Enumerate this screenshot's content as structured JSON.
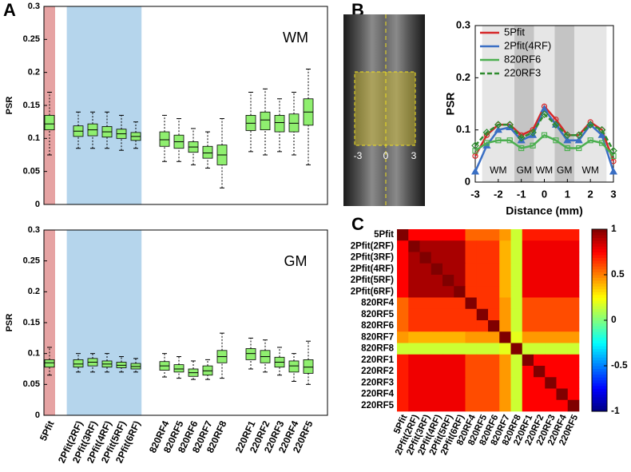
{
  "panel_labels": [
    "A",
    "B",
    "C"
  ],
  "image": {
    "tick_labels": [
      "-3",
      "0",
      "3"
    ]
  },
  "chart_data": [
    {
      "type": "box",
      "ylabel": "PSR",
      "annotation": "WM",
      "ylim": [
        0,
        0.3
      ],
      "yticks": [
        0,
        0.05,
        0.1,
        0.15,
        0.2,
        0.25,
        0.3
      ],
      "boxes": [
        {
          "low": 0.075,
          "q1": 0.113,
          "median": 0.122,
          "q3": 0.135,
          "high": 0.17
        },
        {
          "low": 0.085,
          "q1": 0.103,
          "median": 0.111,
          "q3": 0.119,
          "high": 0.14
        },
        {
          "low": 0.085,
          "q1": 0.104,
          "median": 0.113,
          "q3": 0.122,
          "high": 0.14
        },
        {
          "low": 0.085,
          "q1": 0.102,
          "median": 0.11,
          "q3": 0.118,
          "high": 0.14
        },
        {
          "low": 0.082,
          "q1": 0.1,
          "median": 0.107,
          "q3": 0.114,
          "high": 0.135
        },
        {
          "low": 0.085,
          "q1": 0.097,
          "median": 0.103,
          "q3": 0.109,
          "high": 0.125
        },
        {
          "low": 0.065,
          "q1": 0.088,
          "median": 0.098,
          "q3": 0.11,
          "high": 0.135
        },
        {
          "low": 0.065,
          "q1": 0.085,
          "median": 0.095,
          "q3": 0.105,
          "high": 0.13
        },
        {
          "low": 0.06,
          "q1": 0.079,
          "median": 0.087,
          "q3": 0.095,
          "high": 0.115
        },
        {
          "low": 0.055,
          "q1": 0.07,
          "median": 0.078,
          "q3": 0.088,
          "high": 0.11
        },
        {
          "low": 0.025,
          "q1": 0.06,
          "median": 0.075,
          "q3": 0.09,
          "high": 0.13
        },
        {
          "low": 0.08,
          "q1": 0.112,
          "median": 0.123,
          "q3": 0.135,
          "high": 0.17
        },
        {
          "low": 0.075,
          "q1": 0.113,
          "median": 0.128,
          "q3": 0.14,
          "high": 0.175
        },
        {
          "low": 0.08,
          "q1": 0.11,
          "median": 0.124,
          "q3": 0.135,
          "high": 0.16
        },
        {
          "low": 0.075,
          "q1": 0.11,
          "median": 0.123,
          "q3": 0.137,
          "high": 0.17
        },
        {
          "low": 0.06,
          "q1": 0.12,
          "median": 0.14,
          "q3": 0.16,
          "high": 0.205
        }
      ]
    },
    {
      "type": "box",
      "ylabel": "PSR",
      "annotation": "GM",
      "ylim": [
        0,
        0.3
      ],
      "yticks": [
        0,
        0.05,
        0.1,
        0.15,
        0.2,
        0.25,
        0.3
      ],
      "categories": [
        "5Pfit",
        "2Pfit(2RF)",
        "2Pfit(3RF)",
        "2Pfit(4RF)",
        "2Pfit(5RF)",
        "2Pfit(6RF)",
        "820RF4",
        "820RF5",
        "820RF6",
        "820RF7",
        "820RF8",
        "220RF1",
        "220RF2",
        "220RF3",
        "220RF4",
        "220RF5"
      ],
      "boxes": [
        {
          "low": 0.065,
          "q1": 0.078,
          "median": 0.085,
          "q3": 0.09,
          "high": 0.11
        },
        {
          "low": 0.07,
          "q1": 0.078,
          "median": 0.083,
          "q3": 0.09,
          "high": 0.1
        },
        {
          "low": 0.07,
          "q1": 0.08,
          "median": 0.086,
          "q3": 0.092,
          "high": 0.1
        },
        {
          "low": 0.07,
          "q1": 0.078,
          "median": 0.083,
          "q3": 0.088,
          "high": 0.1
        },
        {
          "low": 0.07,
          "q1": 0.077,
          "median": 0.081,
          "q3": 0.086,
          "high": 0.095
        },
        {
          "low": 0.07,
          "q1": 0.075,
          "median": 0.079,
          "q3": 0.084,
          "high": 0.092
        },
        {
          "low": 0.062,
          "q1": 0.073,
          "median": 0.08,
          "q3": 0.087,
          "high": 0.1
        },
        {
          "low": 0.06,
          "q1": 0.07,
          "median": 0.075,
          "q3": 0.082,
          "high": 0.095
        },
        {
          "low": 0.058,
          "q1": 0.063,
          "median": 0.069,
          "q3": 0.075,
          "high": 0.088
        },
        {
          "low": 0.058,
          "q1": 0.065,
          "median": 0.072,
          "q3": 0.08,
          "high": 0.09
        },
        {
          "low": 0.06,
          "q1": 0.085,
          "median": 0.095,
          "q3": 0.105,
          "high": 0.133
        },
        {
          "low": 0.075,
          "q1": 0.09,
          "median": 0.1,
          "q3": 0.108,
          "high": 0.125
        },
        {
          "low": 0.07,
          "q1": 0.085,
          "median": 0.095,
          "q3": 0.105,
          "high": 0.122
        },
        {
          "low": 0.065,
          "q1": 0.078,
          "median": 0.086,
          "q3": 0.094,
          "high": 0.11
        },
        {
          "low": 0.055,
          "q1": 0.07,
          "median": 0.08,
          "q3": 0.088,
          "high": 0.1
        },
        {
          "low": 0.05,
          "q1": 0.068,
          "median": 0.078,
          "q3": 0.09,
          "high": 0.12
        }
      ]
    },
    {
      "type": "line",
      "ylabel": "PSR",
      "xlabel": "Distance (mm)",
      "legend": "upper left",
      "xlim": [
        -3,
        3
      ],
      "xticks": [
        -3,
        -2,
        -1,
        0,
        1,
        2,
        3
      ],
      "ylim": [
        0,
        0.3
      ],
      "yticks": [
        0,
        0.1,
        0.2,
        0.3
      ],
      "regions": [
        {
          "label": "WM",
          "from": -2.7,
          "to": -1.3,
          "color": "#e6e6e6"
        },
        {
          "label": "GM",
          "from": -1.3,
          "to": -0.45,
          "color": "#c4c4c4"
        },
        {
          "label": "WM",
          "from": -0.45,
          "to": 0.45,
          "color": "#e6e6e6"
        },
        {
          "label": "GM",
          "from": 0.45,
          "to": 1.3,
          "color": "#c4c4c4"
        },
        {
          "label": "WM",
          "from": 1.3,
          "to": 2.7,
          "color": "#e6e6e6"
        }
      ],
      "x": [
        -3,
        -2.5,
        -2,
        -1.5,
        -1,
        -0.5,
        0,
        0.5,
        1,
        1.5,
        2,
        2.5,
        3
      ],
      "series": [
        {
          "name": "5Pfit",
          "color": "#d62728",
          "marker": "circle",
          "dash": false,
          "values": [
            0.05,
            0.09,
            0.11,
            0.11,
            0.09,
            0.1,
            0.145,
            0.12,
            0.09,
            0.09,
            0.115,
            0.1,
            0.04
          ]
        },
        {
          "name": "2Pfit(4RF)",
          "color": "#3a6fc4",
          "marker": "triangle",
          "dash": false,
          "values": [
            0.02,
            0.07,
            0.1,
            0.105,
            0.08,
            0.09,
            0.14,
            0.11,
            0.08,
            0.08,
            0.11,
            0.09,
            0.02
          ]
        },
        {
          "name": "820RF6",
          "color": "#4caf50",
          "marker": "square",
          "dash": false,
          "values": [
            0.06,
            0.075,
            0.08,
            0.08,
            0.065,
            0.07,
            0.09,
            0.08,
            0.065,
            0.065,
            0.08,
            0.075,
            0.05
          ]
        },
        {
          "name": "220RF3",
          "color": "#2e8b2e",
          "marker": "diamond",
          "dash": true,
          "values": [
            0.07,
            0.095,
            0.11,
            0.11,
            0.085,
            0.095,
            0.13,
            0.11,
            0.09,
            0.09,
            0.11,
            0.1,
            0.06
          ]
        }
      ]
    },
    {
      "type": "heatmap",
      "categories": [
        "5Pfit",
        "2Pfit(2RF)",
        "2Pfit(3RF)",
        "2Pfit(4RF)",
        "2Pfit(5RF)",
        "2Pfit(6RF)",
        "820RF4",
        "820RF5",
        "820RF6",
        "820RF7",
        "820RF8",
        "220RF1",
        "220RF2",
        "220RF3",
        "220RF4",
        "220RF5"
      ],
      "zlim": [
        -1,
        1
      ],
      "zticks": [
        -1,
        -0.5,
        0,
        0.5,
        1
      ],
      "matrix": [
        [
          1,
          0.75,
          0.75,
          0.75,
          0.75,
          0.75,
          0.55,
          0.55,
          0.55,
          0.45,
          0.15,
          0.7,
          0.7,
          0.7,
          0.7,
          0.7
        ],
        [
          0.75,
          1,
          0.92,
          0.92,
          0.92,
          0.92,
          0.65,
          0.65,
          0.65,
          0.4,
          0.15,
          0.78,
          0.78,
          0.78,
          0.78,
          0.78
        ],
        [
          0.75,
          0.92,
          1,
          0.92,
          0.92,
          0.92,
          0.65,
          0.65,
          0.65,
          0.4,
          0.15,
          0.78,
          0.78,
          0.78,
          0.78,
          0.78
        ],
        [
          0.75,
          0.92,
          0.92,
          1,
          0.92,
          0.92,
          0.65,
          0.65,
          0.65,
          0.4,
          0.15,
          0.78,
          0.78,
          0.78,
          0.78,
          0.78
        ],
        [
          0.75,
          0.92,
          0.92,
          0.92,
          1,
          0.92,
          0.65,
          0.65,
          0.65,
          0.4,
          0.15,
          0.78,
          0.78,
          0.78,
          0.78,
          0.78
        ],
        [
          0.75,
          0.92,
          0.92,
          0.92,
          0.92,
          1,
          0.65,
          0.65,
          0.65,
          0.4,
          0.15,
          0.78,
          0.78,
          0.78,
          0.78,
          0.78
        ],
        [
          0.55,
          0.65,
          0.65,
          0.65,
          0.65,
          0.65,
          1,
          0.65,
          0.65,
          0.45,
          0.15,
          0.6,
          0.6,
          0.6,
          0.6,
          0.6
        ],
        [
          0.55,
          0.65,
          0.65,
          0.65,
          0.65,
          0.65,
          0.65,
          1,
          0.65,
          0.45,
          0.15,
          0.6,
          0.6,
          0.6,
          0.6,
          0.6
        ],
        [
          0.55,
          0.65,
          0.65,
          0.65,
          0.65,
          0.65,
          0.65,
          0.65,
          1,
          0.45,
          0.15,
          0.6,
          0.6,
          0.6,
          0.6,
          0.6
        ],
        [
          0.45,
          0.4,
          0.4,
          0.4,
          0.4,
          0.4,
          0.45,
          0.45,
          0.45,
          1,
          0.2,
          0.45,
          0.45,
          0.45,
          0.45,
          0.45
        ],
        [
          0.15,
          0.15,
          0.15,
          0.15,
          0.15,
          0.15,
          0.15,
          0.15,
          0.15,
          0.2,
          1,
          0.15,
          0.15,
          0.15,
          0.15,
          0.15
        ],
        [
          0.7,
          0.78,
          0.78,
          0.78,
          0.78,
          0.78,
          0.6,
          0.6,
          0.6,
          0.45,
          0.15,
          1,
          0.75,
          0.75,
          0.75,
          0.75
        ],
        [
          0.7,
          0.78,
          0.78,
          0.78,
          0.78,
          0.78,
          0.6,
          0.6,
          0.6,
          0.45,
          0.15,
          0.75,
          1,
          0.75,
          0.75,
          0.75
        ],
        [
          0.7,
          0.78,
          0.78,
          0.78,
          0.78,
          0.78,
          0.6,
          0.6,
          0.6,
          0.45,
          0.15,
          0.75,
          0.75,
          1,
          0.75,
          0.75
        ],
        [
          0.7,
          0.78,
          0.78,
          0.78,
          0.78,
          0.78,
          0.6,
          0.6,
          0.6,
          0.45,
          0.15,
          0.75,
          0.75,
          0.75,
          1,
          0.75
        ],
        [
          0.7,
          0.78,
          0.78,
          0.78,
          0.78,
          0.78,
          0.6,
          0.6,
          0.6,
          0.45,
          0.15,
          0.75,
          0.75,
          0.75,
          0.75,
          1
        ]
      ]
    }
  ]
}
